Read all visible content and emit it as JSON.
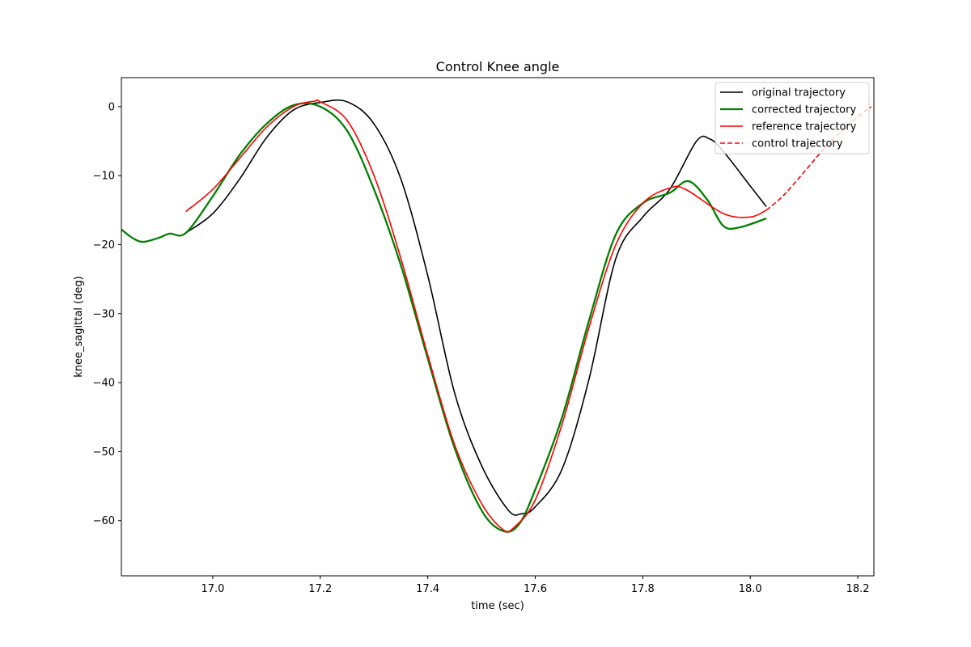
{
  "chart_data": {
    "type": "line",
    "title": "Control Knee angle",
    "xlabel": "time (sec)",
    "ylabel": "knee_sagittal (deg)",
    "xlim": [
      16.83,
      18.23
    ],
    "ylim": [
      -68,
      4.2
    ],
    "xticks": [
      17.0,
      17.2,
      17.4,
      17.6,
      17.8,
      18.0,
      18.2
    ],
    "xtick_labels": [
      "17.0",
      "17.2",
      "17.4",
      "17.6",
      "17.8",
      "18.0",
      "18.2"
    ],
    "yticks": [
      0,
      -10,
      -20,
      -30,
      -40,
      -50,
      -60
    ],
    "ytick_labels": [
      "0",
      "−10",
      "−20",
      "−30",
      "−40",
      "−50",
      "−60"
    ],
    "grid": false,
    "legend_position": "top-right",
    "series": [
      {
        "name": "original trajectory",
        "color": "#000000",
        "style": "solid",
        "x": [
          16.95,
          17.0,
          17.05,
          17.1,
          17.15,
          17.2,
          17.25,
          17.3,
          17.35,
          17.4,
          17.45,
          17.5,
          17.55,
          17.575,
          17.6,
          17.65,
          17.7,
          17.75,
          17.8,
          17.85,
          17.9,
          17.925,
          17.95,
          18.0,
          18.03
        ],
        "y": [
          -18.3,
          -15.5,
          -10.5,
          -4.5,
          -0.5,
          0.6,
          0.7,
          -2.5,
          -10.5,
          -24.5,
          -41.5,
          -52.0,
          -58.5,
          -59.0,
          -58.0,
          -52.5,
          -39.5,
          -22.0,
          -16.0,
          -12.0,
          -5.0,
          -4.7,
          -6.5,
          -11.5,
          -14.5
        ]
      },
      {
        "name": "corrected trajectory",
        "color": "#008000",
        "style": "solid",
        "x": [
          16.83,
          16.85,
          16.87,
          16.9,
          16.92,
          16.95,
          17.0,
          17.05,
          17.1,
          17.15,
          17.2,
          17.25,
          17.3,
          17.35,
          17.4,
          17.45,
          17.5,
          17.54,
          17.57,
          17.6,
          17.65,
          17.7,
          17.75,
          17.8,
          17.85,
          17.885,
          17.92,
          17.95,
          17.98,
          18.03
        ],
        "y": [
          -17.8,
          -19.0,
          -19.6,
          -19.0,
          -18.4,
          -18.3,
          -13.0,
          -7.0,
          -2.5,
          0.2,
          0.0,
          -3.5,
          -12.0,
          -23.0,
          -36.5,
          -49.5,
          -58.5,
          -61.5,
          -60.5,
          -55.5,
          -45.0,
          -31.0,
          -18.5,
          -14.0,
          -12.5,
          -10.8,
          -13.5,
          -17.3,
          -17.5,
          -16.2
        ]
      },
      {
        "name": "reference trajectory",
        "color": "#ff0000",
        "style": "solid",
        "x": [
          16.95,
          17.0,
          17.05,
          17.1,
          17.15,
          17.19,
          17.2,
          17.25,
          17.3,
          17.35,
          17.4,
          17.45,
          17.5,
          17.54,
          17.56,
          17.6,
          17.65,
          17.7,
          17.75,
          17.8,
          17.85,
          17.88,
          17.95,
          18.0,
          18.03
        ],
        "y": [
          -15.2,
          -12.0,
          -7.5,
          -3.0,
          0.0,
          0.8,
          0.7,
          -2.0,
          -10.0,
          -22.0,
          -36.0,
          -49.0,
          -57.5,
          -61.3,
          -61.0,
          -57.0,
          -46.0,
          -32.0,
          -20.0,
          -14.0,
          -11.8,
          -12.0,
          -15.5,
          -16.0,
          -15.0
        ]
      },
      {
        "name": "control trajectory",
        "color": "#ff0000",
        "style": "dashed",
        "x": [
          18.03,
          18.06,
          18.1,
          18.15,
          18.2,
          18.225
        ],
        "y": [
          -15.0,
          -13.0,
          -9.5,
          -5.0,
          -1.5,
          0.0
        ]
      }
    ]
  }
}
